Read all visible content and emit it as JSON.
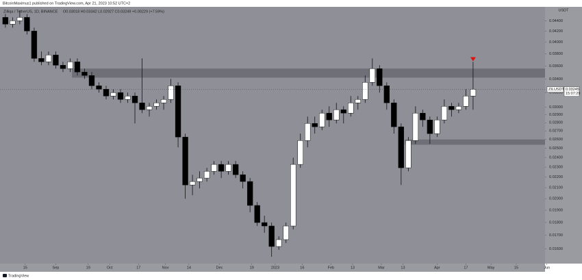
{
  "header": "BitcoinMaximus1 published on TradingView.com, Apr 21, 2023 10:52 UTC+2",
  "footer": "TradingView",
  "chart_data": {
    "type": "candlestick",
    "symbol_title": "Zilliqa / TetherUS, 1D, BINANCE",
    "legend_values": "O0.03018 H0.03342 L0.02927 C0.03249 +0.00229 (+7.59%)",
    "y_unit": "USDT",
    "y_scale": "log",
    "grid": false,
    "background": "#8f9097",
    "up_color": "#ffffff",
    "down_color": "#000000",
    "x": [
      "2022-08-04",
      "2022-08-08",
      "2022-08-12",
      "2022-08-16",
      "2022-08-20",
      "2022-08-24",
      "2022-08-28",
      "2022-09-01",
      "2022-09-05",
      "2022-09-09",
      "2022-09-13",
      "2022-09-17",
      "2022-09-21",
      "2022-09-25",
      "2022-09-29",
      "2022-10-03",
      "2022-10-07",
      "2022-10-11",
      "2022-10-15",
      "2022-10-19",
      "2022-10-23",
      "2022-10-27",
      "2022-10-31",
      "2022-11-04",
      "2022-11-08",
      "2022-11-12",
      "2022-11-16",
      "2022-11-20",
      "2022-11-24",
      "2022-11-28",
      "2022-12-02",
      "2022-12-06",
      "2022-12-10",
      "2022-12-14",
      "2022-12-18",
      "2022-12-22",
      "2022-12-26",
      "2022-12-30",
      "2023-01-03",
      "2023-01-07",
      "2023-01-11",
      "2023-01-15",
      "2023-01-19",
      "2023-01-23",
      "2023-01-27",
      "2023-01-31",
      "2023-02-04",
      "2023-02-08",
      "2023-02-12",
      "2023-02-16",
      "2023-02-20",
      "2023-02-24",
      "2023-02-28",
      "2023-03-04",
      "2023-03-08",
      "2023-03-12",
      "2023-03-16",
      "2023-03-20",
      "2023-03-24",
      "2023-03-28",
      "2023-04-01",
      "2023-04-05",
      "2023-04-09",
      "2023-04-13",
      "2023-04-17",
      "2023-04-21"
    ],
    "open": [
      0.04467,
      0.04334,
      0.044,
      0.04467,
      0.04204,
      0.03724,
      0.03668,
      0.03781,
      0.03613,
      0.03559,
      0.03668,
      0.03505,
      0.03452,
      0.03299,
      0.03249,
      0.03152,
      0.032,
      0.03105,
      0.03152,
      0.03058,
      0.02967,
      0.03012,
      0.03058,
      0.03105,
      0.03299,
      0.02628,
      0.02125,
      0.02158,
      0.02191,
      0.02258,
      0.02328,
      0.02258,
      0.02328,
      0.02224,
      0.02158,
      0.01941,
      0.01799,
      0.01772,
      0.01618,
      0.01668,
      0.01772,
      0.02328,
      0.02588,
      0.02792,
      0.0275,
      0.02922,
      0.02835,
      0.02967,
      0.02922,
      0.03058,
      0.03105,
      0.03349,
      0.03559,
      0.03299,
      0.03058,
      0.0275,
      0.02293,
      0.02588,
      0.02922,
      0.02835,
      0.02668,
      0.02835,
      0.03012,
      0.02967,
      0.03012,
      0.03152
    ],
    "high": [
      0.04535,
      0.04467,
      0.04604,
      0.04535,
      0.04268,
      0.03839,
      0.03839,
      0.03839,
      0.03668,
      0.03724,
      0.03724,
      0.03559,
      0.03505,
      0.03349,
      0.03299,
      0.03249,
      0.03249,
      0.032,
      0.032,
      0.03724,
      0.03058,
      0.03105,
      0.03152,
      0.034,
      0.03349,
      0.02668,
      0.02224,
      0.02258,
      0.02293,
      0.02363,
      0.02363,
      0.02363,
      0.02363,
      0.02258,
      0.02191,
      0.0197,
      0.01854,
      0.01799,
      0.01693,
      0.01799,
      0.02399,
      0.02668,
      0.02878,
      0.02878,
      0.02967,
      0.03012,
      0.03058,
      0.03012,
      0.03152,
      0.03152,
      0.03452,
      0.03724,
      0.03613,
      0.03349,
      0.03105,
      0.02792,
      0.02628,
      0.03012,
      0.02967,
      0.02878,
      0.02878,
      0.03105,
      0.03058,
      0.03058,
      0.03249,
      0.03668
    ],
    "low": [
      0.04268,
      0.04268,
      0.04334,
      0.04141,
      0.03668,
      0.03613,
      0.03613,
      0.03559,
      0.03505,
      0.03505,
      0.03452,
      0.034,
      0.03249,
      0.032,
      0.03105,
      0.03105,
      0.03058,
      0.03058,
      0.02792,
      0.02922,
      0.02878,
      0.02967,
      0.02967,
      0.03058,
      0.02511,
      0.02,
      0.02031,
      0.02093,
      0.02158,
      0.02224,
      0.02191,
      0.02224,
      0.02191,
      0.02093,
      0.01883,
      0.01772,
      0.01719,
      0.01546,
      0.01594,
      0.01643,
      0.01745,
      0.02293,
      0.02511,
      0.02668,
      0.02709,
      0.0275,
      0.02792,
      0.02792,
      0.02878,
      0.02967,
      0.03058,
      0.03299,
      0.032,
      0.02967,
      0.02668,
      0.02125,
      0.02258,
      0.02549,
      0.0275,
      0.02549,
      0.02628,
      0.02792,
      0.02878,
      0.02922,
      0.02967,
      0.02967
    ],
    "close": [
      0.04334,
      0.044,
      0.04467,
      0.04204,
      0.03724,
      0.03668,
      0.03781,
      0.03613,
      0.03559,
      0.03668,
      0.03505,
      0.03452,
      0.03299,
      0.03249,
      0.03152,
      0.032,
      0.03105,
      0.03152,
      0.03058,
      0.02967,
      0.03012,
      0.03058,
      0.03105,
      0.03299,
      0.02628,
      0.02125,
      0.02158,
      0.02191,
      0.02258,
      0.02328,
      0.02258,
      0.02328,
      0.02224,
      0.02158,
      0.01941,
      0.01799,
      0.01772,
      0.01618,
      0.01668,
      0.01772,
      0.02328,
      0.02588,
      0.02792,
      0.0275,
      0.02922,
      0.02835,
      0.02967,
      0.02922,
      0.03058,
      0.03105,
      0.03349,
      0.03559,
      0.03299,
      0.03058,
      0.0275,
      0.02293,
      0.02588,
      0.02922,
      0.02835,
      0.02668,
      0.02835,
      0.03012,
      0.02967,
      0.03012,
      0.03152,
      0.03249
    ],
    "xlim": [
      "2022-08-01",
      "2023-05-31"
    ],
    "ylim": [
      0.015,
      0.0468
    ],
    "xticks": [
      {
        "value": "2022-08-15",
        "label": "15"
      },
      {
        "value": "2022-09-01",
        "label": "Sep"
      },
      {
        "value": "2022-09-19",
        "label": "19"
      },
      {
        "value": "2022-10-01",
        "label": "Oct"
      },
      {
        "value": "2022-10-17",
        "label": "17"
      },
      {
        "value": "2022-11-01",
        "label": "Nov"
      },
      {
        "value": "2022-11-14",
        "label": "14"
      },
      {
        "value": "2022-12-01",
        "label": "Dec"
      },
      {
        "value": "2022-12-19",
        "label": "19"
      },
      {
        "value": "2023-01-01",
        "label": "2023"
      },
      {
        "value": "2023-01-16",
        "label": "16"
      },
      {
        "value": "2023-02-01",
        "label": "Feb"
      },
      {
        "value": "2023-02-13",
        "label": "13"
      },
      {
        "value": "2023-03-01",
        "label": "Mar"
      },
      {
        "value": "2023-03-13",
        "label": "13"
      },
      {
        "value": "2023-04-01",
        "label": "Apr"
      },
      {
        "value": "2023-04-17",
        "label": "17"
      },
      {
        "value": "2023-05-01",
        "label": "May"
      },
      {
        "value": "2023-05-15",
        "label": "15"
      },
      {
        "value": "2023-06-01",
        "label": "Jun"
      }
    ],
    "yticks": [
      {
        "value": 0.044,
        "label": "0.04400"
      },
      {
        "value": 0.042,
        "label": "0.04200"
      },
      {
        "value": 0.04,
        "label": "0.04000"
      },
      {
        "value": 0.038,
        "label": "0.03800"
      },
      {
        "value": 0.036,
        "label": "0.03600"
      },
      {
        "value": 0.034,
        "label": "0.03400"
      },
      {
        "value": 0.032,
        "label": "0.03200"
      },
      {
        "value": 0.03,
        "label": "0.03000"
      },
      {
        "value": 0.029,
        "label": "0.02900"
      },
      {
        "value": 0.028,
        "label": "0.02800"
      },
      {
        "value": 0.027,
        "label": "0.02700"
      },
      {
        "value": 0.026,
        "label": "0.02600"
      },
      {
        "value": 0.025,
        "label": "0.02500"
      },
      {
        "value": 0.024,
        "label": "0.02400"
      },
      {
        "value": 0.023,
        "label": "0.02300"
      },
      {
        "value": 0.022,
        "label": "0.02200"
      },
      {
        "value": 0.021,
        "label": "0.02100"
      },
      {
        "value": 0.02,
        "label": "0.02000"
      },
      {
        "value": 0.019,
        "label": "0.01900"
      },
      {
        "value": 0.018,
        "label": "0.01800"
      },
      {
        "value": 0.017,
        "label": "0.01700"
      },
      {
        "value": 0.016,
        "label": "0.01600"
      }
    ],
    "zones": [
      {
        "from": "2022-09-10",
        "low": 0.0342,
        "high": 0.0356,
        "color": "#6f7077"
      },
      {
        "from": "2023-03-14",
        "low": 0.0254,
        "high": 0.026,
        "color": "#6f7077"
      }
    ],
    "marker": {
      "x": "2023-04-21",
      "y": 0.037,
      "color": "#e01010"
    },
    "price_tag": {
      "symbol": "ZILUSDT",
      "value": 0.03245,
      "countdown": "15:07:29"
    }
  }
}
